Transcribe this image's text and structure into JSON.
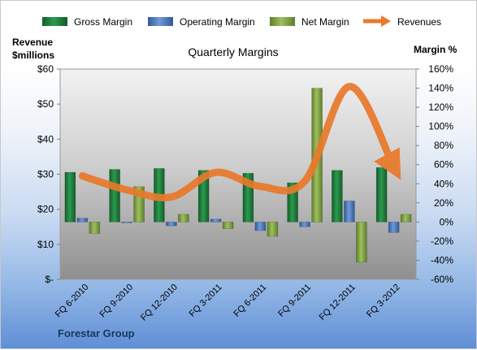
{
  "chart_data": {
    "type": "bar",
    "title": "Quarterly Margins",
    "categories": [
      "FQ 6-2010",
      "FQ 9-2010",
      "FQ 12-2010",
      "FQ 3-2011",
      "FQ 6-2011",
      "FQ 9-2011",
      "FQ 12-2011",
      "FQ 3-2012"
    ],
    "series": [
      {
        "name": "Gross Margin",
        "axis": "right",
        "kind": "bar",
        "color": "#1e7a3c",
        "values": [
          52,
          55,
          56,
          54,
          51,
          41,
          54,
          57
        ]
      },
      {
        "name": "Operating Margin",
        "axis": "right",
        "kind": "bar",
        "color": "#4f7fc4",
        "values": [
          4,
          0,
          -4,
          3,
          -9,
          -5,
          22,
          -11
        ]
      },
      {
        "name": "Net Margin",
        "axis": "right",
        "kind": "bar",
        "color": "#7fa343",
        "values": [
          -12,
          37,
          8,
          -7,
          -15,
          140,
          -42,
          8
        ]
      },
      {
        "name": "Revenues",
        "axis": "left",
        "kind": "line",
        "color": "#e9792a",
        "values": [
          29.5,
          25.5,
          23.5,
          30.5,
          26.5,
          28,
          55,
          32
        ]
      }
    ],
    "left_axis": {
      "title_line1": "Revenue",
      "title_line2": "$millions",
      "range": [
        0,
        60
      ],
      "ticks": [
        "$-",
        "$10",
        "$20",
        "$30",
        "$40",
        "$50",
        "$60"
      ]
    },
    "right_axis": {
      "title": "Margin %",
      "range": [
        -60,
        160
      ],
      "ticks": [
        "-60%",
        "-40%",
        "-20%",
        "0%",
        "20%",
        "40%",
        "60%",
        "80%",
        "100%",
        "120%",
        "140%",
        "160%"
      ]
    },
    "legend_position": "top",
    "grid": false
  },
  "footer": {
    "company": "Forestar Group"
  }
}
